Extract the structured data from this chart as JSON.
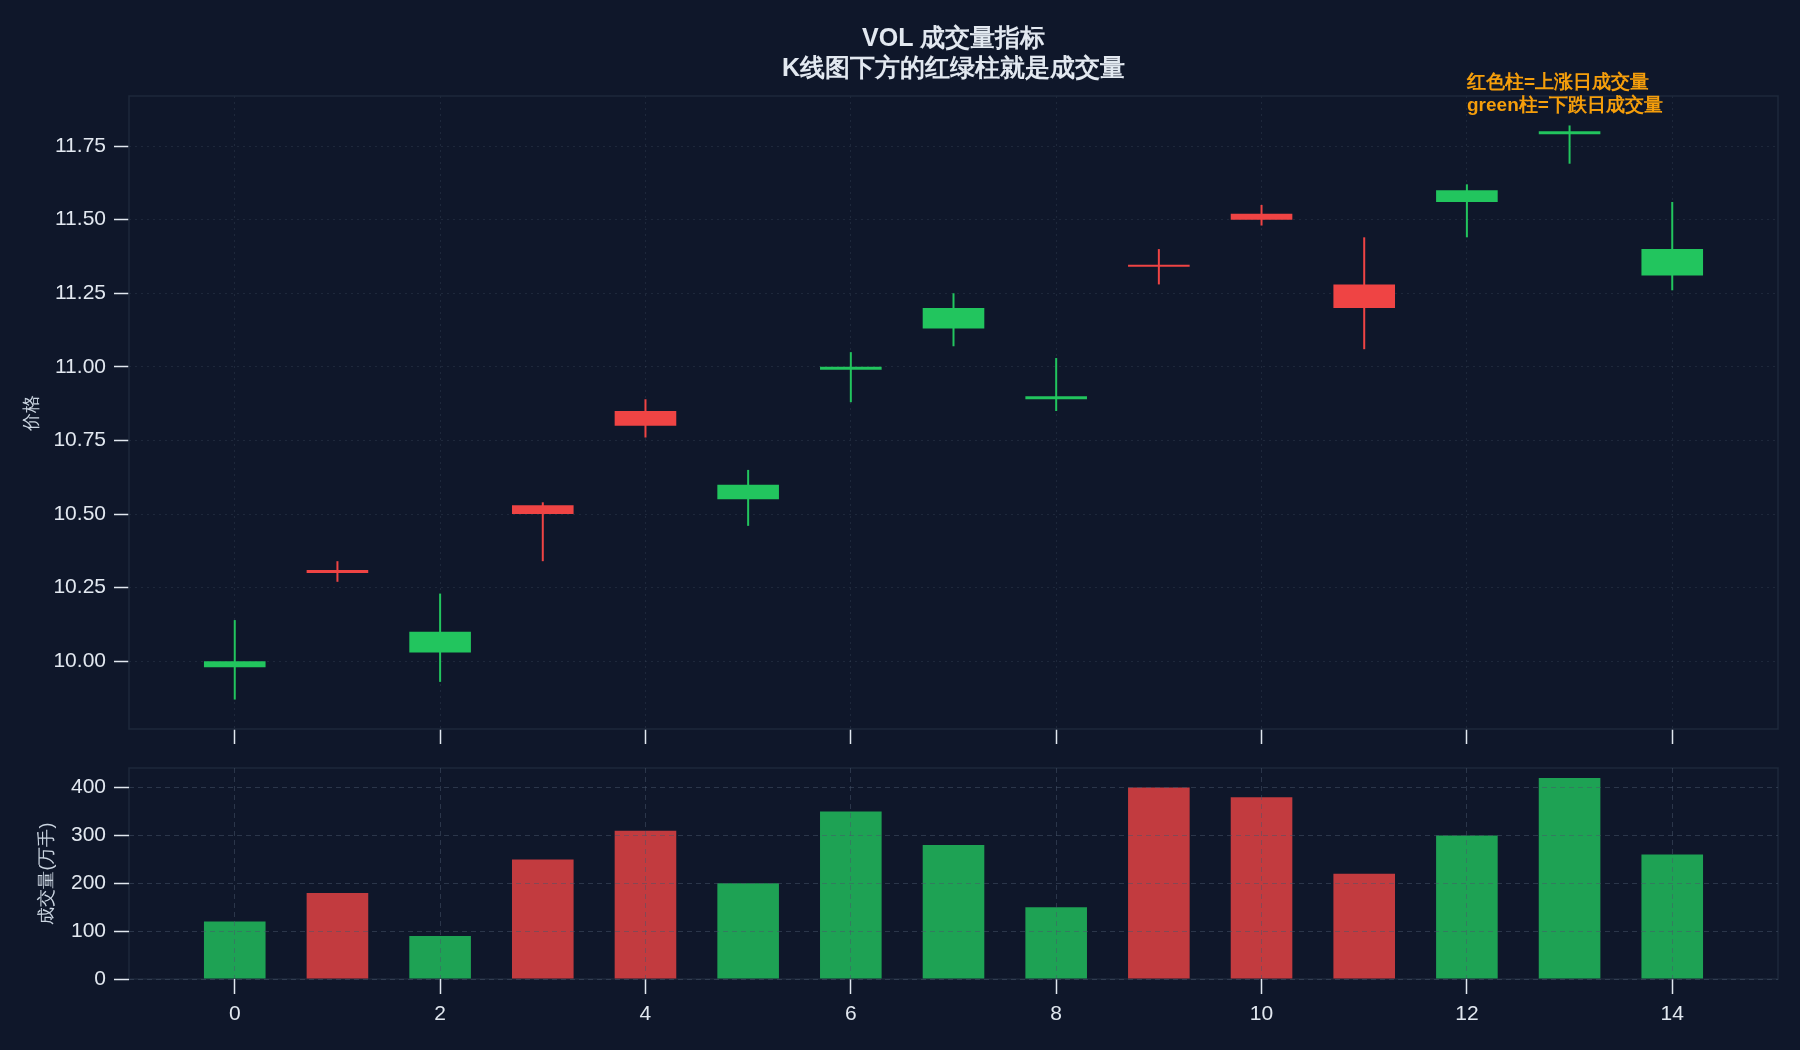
{
  "chart_data": [
    {
      "type": "candlestick",
      "title": "VOL 成交量指标",
      "subtitle": "K线图下方的红绿柱就是成交量",
      "ylabel": "价格",
      "x": [
        0,
        1,
        2,
        3,
        4,
        5,
        6,
        7,
        8,
        9,
        10,
        11,
        12,
        13,
        14
      ],
      "ohlc": [
        [
          10.0,
          10.14,
          9.87,
          9.98
        ],
        [
          10.3,
          10.34,
          10.27,
          10.31
        ],
        [
          10.1,
          10.23,
          9.93,
          10.03
        ],
        [
          10.5,
          10.54,
          10.34,
          10.53
        ],
        [
          10.8,
          10.89,
          10.76,
          10.85
        ],
        [
          10.6,
          10.65,
          10.46,
          10.55
        ],
        [
          11.0,
          11.05,
          10.88,
          10.99
        ],
        [
          11.2,
          11.25,
          11.07,
          11.13
        ],
        [
          10.9,
          11.03,
          10.85,
          10.89
        ],
        [
          11.34,
          11.4,
          11.28,
          11.34
        ],
        [
          11.5,
          11.55,
          11.48,
          11.52
        ],
        [
          11.2,
          11.44,
          11.06,
          11.28
        ],
        [
          11.6,
          11.62,
          11.44,
          11.56
        ],
        [
          11.8,
          11.82,
          11.69,
          11.79
        ],
        [
          11.4,
          11.56,
          11.26,
          11.31
        ]
      ],
      "colors": [
        "#22c55e",
        "#ef4444",
        "#22c55e",
        "#ef4444",
        "#ef4444",
        "#22c55e",
        "#22c55e",
        "#22c55e",
        "#22c55e",
        "#ef4444",
        "#ef4444",
        "#ef4444",
        "#22c55e",
        "#22c55e",
        "#22c55e"
      ],
      "xlim": [
        -1.03,
        15.03
      ],
      "xticks": [
        0,
        2,
        4,
        6,
        8,
        10,
        12,
        14
      ],
      "ylim": [
        9.77,
        11.92
      ],
      "yticks": [
        {
          "value": 10,
          "label": "10.00"
        },
        10.25,
        {
          "value": 10.5,
          "label": "10.50"
        },
        10.75,
        {
          "value": 11,
          "label": "11.00"
        },
        11.25,
        {
          "value": 11.5,
          "label": "11.50"
        },
        11.75
      ],
      "grid": true,
      "tick_labels": "y",
      "annotations": [
        "红色柱=上涨日成交量\ngreen柱=下跌日成交量"
      ]
    },
    {
      "type": "bar",
      "ylabel": "成交量(万手)",
      "x": [
        0,
        1,
        2,
        3,
        4,
        5,
        6,
        7,
        8,
        9,
        10,
        11,
        12,
        13,
        14
      ],
      "values": [
        120,
        180,
        90,
        250,
        310,
        200,
        350,
        280,
        150,
        400,
        380,
        220,
        300,
        420,
        260
      ],
      "colors": [
        "#1ea254",
        "#c23b3f",
        "#1ea254",
        "#c23b3f",
        "#c23b3f",
        "#1ea254",
        "#1ea254",
        "#1ea254",
        "#1ea254",
        "#c23b3f",
        "#c23b3f",
        "#c23b3f",
        "#1ea254",
        "#1ea254",
        "#1ea254"
      ],
      "xlim": [
        -1.03,
        15.03
      ],
      "xticks": [
        0,
        2,
        4,
        6,
        8,
        10,
        12,
        14
      ],
      "ylim": [
        0,
        441
      ],
      "yticks": [
        0,
        100,
        200,
        300,
        400
      ],
      "grid": true
    }
  ]
}
